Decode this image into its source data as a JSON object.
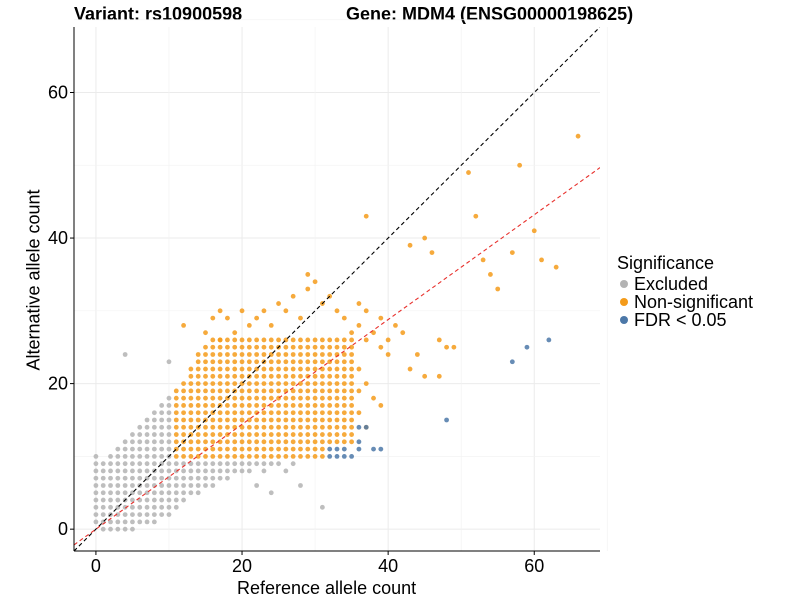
{
  "header": {
    "variant_label": "Variant: rs10900598",
    "gene_label": "Gene: MDM4 (ENSG00000198625)"
  },
  "chart_data": {
    "type": "scatter",
    "xlabel": "Reference allele count",
    "ylabel": "Alternative allele count",
    "xlim": [
      -3,
      69
    ],
    "ylim": [
      -3,
      69
    ],
    "xticks": [
      0,
      20,
      40,
      60
    ],
    "yticks": [
      0,
      20,
      40,
      60
    ],
    "grid": true,
    "legend_title": "Significance",
    "legend_position": "right",
    "series": [
      {
        "name": "Excluded",
        "color": "#b3b3b3",
        "points": [
          [
            0,
            1
          ],
          [
            0,
            2
          ],
          [
            0,
            3
          ],
          [
            0,
            4
          ],
          [
            0,
            5
          ],
          [
            0,
            6
          ],
          [
            0,
            7
          ],
          [
            0,
            8
          ],
          [
            0,
            9
          ],
          [
            0,
            10
          ],
          [
            1,
            0
          ],
          [
            1,
            1
          ],
          [
            1,
            2
          ],
          [
            1,
            3
          ],
          [
            1,
            4
          ],
          [
            1,
            5
          ],
          [
            1,
            6
          ],
          [
            1,
            7
          ],
          [
            1,
            8
          ],
          [
            1,
            9
          ],
          [
            2,
            0
          ],
          [
            2,
            1
          ],
          [
            2,
            2
          ],
          [
            2,
            3
          ],
          [
            2,
            4
          ],
          [
            2,
            5
          ],
          [
            2,
            6
          ],
          [
            2,
            7
          ],
          [
            2,
            8
          ],
          [
            2,
            9
          ],
          [
            2,
            10
          ],
          [
            3,
            0
          ],
          [
            3,
            1
          ],
          [
            3,
            2
          ],
          [
            3,
            3
          ],
          [
            3,
            4
          ],
          [
            3,
            5
          ],
          [
            3,
            6
          ],
          [
            3,
            7
          ],
          [
            3,
            8
          ],
          [
            3,
            9
          ],
          [
            3,
            10
          ],
          [
            3,
            11
          ],
          [
            4,
            0
          ],
          [
            4,
            1
          ],
          [
            4,
            2
          ],
          [
            4,
            3
          ],
          [
            4,
            4
          ],
          [
            4,
            5
          ],
          [
            4,
            6
          ],
          [
            4,
            7
          ],
          [
            4,
            8
          ],
          [
            4,
            9
          ],
          [
            4,
            10
          ],
          [
            4,
            11
          ],
          [
            4,
            12
          ],
          [
            4,
            24
          ],
          [
            5,
            0
          ],
          [
            5,
            1
          ],
          [
            5,
            2
          ],
          [
            5,
            3
          ],
          [
            5,
            4
          ],
          [
            5,
            5
          ],
          [
            5,
            6
          ],
          [
            5,
            7
          ],
          [
            5,
            8
          ],
          [
            5,
            9
          ],
          [
            5,
            10
          ],
          [
            5,
            11
          ],
          [
            5,
            12
          ],
          [
            5,
            13
          ],
          [
            6,
            1
          ],
          [
            6,
            2
          ],
          [
            6,
            3
          ],
          [
            6,
            4
          ],
          [
            6,
            5
          ],
          [
            6,
            6
          ],
          [
            6,
            7
          ],
          [
            6,
            8
          ],
          [
            6,
            9
          ],
          [
            6,
            10
          ],
          [
            6,
            11
          ],
          [
            6,
            12
          ],
          [
            6,
            13
          ],
          [
            6,
            14
          ],
          [
            7,
            1
          ],
          [
            7,
            2
          ],
          [
            7,
            3
          ],
          [
            7,
            4
          ],
          [
            7,
            5
          ],
          [
            7,
            6
          ],
          [
            7,
            7
          ],
          [
            7,
            8
          ],
          [
            7,
            9
          ],
          [
            7,
            10
          ],
          [
            7,
            11
          ],
          [
            7,
            12
          ],
          [
            7,
            13
          ],
          [
            7,
            14
          ],
          [
            7,
            15
          ],
          [
            8,
            1
          ],
          [
            8,
            2
          ],
          [
            8,
            3
          ],
          [
            8,
            4
          ],
          [
            8,
            5
          ],
          [
            8,
            6
          ],
          [
            8,
            7
          ],
          [
            8,
            8
          ],
          [
            8,
            9
          ],
          [
            8,
            10
          ],
          [
            8,
            11
          ],
          [
            8,
            12
          ],
          [
            8,
            13
          ],
          [
            8,
            14
          ],
          [
            8,
            15
          ],
          [
            8,
            16
          ],
          [
            9,
            2
          ],
          [
            9,
            3
          ],
          [
            9,
            4
          ],
          [
            9,
            5
          ],
          [
            9,
            6
          ],
          [
            9,
            7
          ],
          [
            9,
            8
          ],
          [
            9,
            9
          ],
          [
            9,
            10
          ],
          [
            9,
            11
          ],
          [
            9,
            12
          ],
          [
            9,
            13
          ],
          [
            9,
            14
          ],
          [
            9,
            15
          ],
          [
            9,
            16
          ],
          [
            9,
            17
          ],
          [
            10,
            2
          ],
          [
            10,
            3
          ],
          [
            10,
            4
          ],
          [
            10,
            5
          ],
          [
            10,
            6
          ],
          [
            10,
            7
          ],
          [
            10,
            8
          ],
          [
            10,
            9
          ],
          [
            10,
            10
          ],
          [
            10,
            11
          ],
          [
            10,
            12
          ],
          [
            10,
            13
          ],
          [
            10,
            14
          ],
          [
            10,
            15
          ],
          [
            10,
            16
          ],
          [
            10,
            17
          ],
          [
            10,
            18
          ],
          [
            10,
            23
          ],
          [
            11,
            3
          ],
          [
            11,
            4
          ],
          [
            11,
            5
          ],
          [
            11,
            6
          ],
          [
            11,
            7
          ],
          [
            11,
            8
          ],
          [
            11,
            9
          ],
          [
            12,
            4
          ],
          [
            12,
            5
          ],
          [
            12,
            6
          ],
          [
            12,
            7
          ],
          [
            12,
            8
          ],
          [
            12,
            9
          ],
          [
            13,
            5
          ],
          [
            13,
            6
          ],
          [
            13,
            7
          ],
          [
            13,
            8
          ],
          [
            13,
            9
          ],
          [
            14,
            5
          ],
          [
            14,
            6
          ],
          [
            14,
            7
          ],
          [
            14,
            8
          ],
          [
            14,
            9
          ],
          [
            15,
            6
          ],
          [
            15,
            7
          ],
          [
            15,
            8
          ],
          [
            15,
            9
          ],
          [
            16,
            6
          ],
          [
            16,
            7
          ],
          [
            16,
            8
          ],
          [
            16,
            9
          ],
          [
            17,
            7
          ],
          [
            17,
            8
          ],
          [
            17,
            9
          ],
          [
            18,
            7
          ],
          [
            18,
            8
          ],
          [
            18,
            9
          ],
          [
            19,
            8
          ],
          [
            19,
            9
          ],
          [
            20,
            8
          ],
          [
            20,
            9
          ],
          [
            21,
            8
          ],
          [
            21,
            9
          ],
          [
            22,
            9
          ],
          [
            23,
            9
          ],
          [
            24,
            9
          ],
          [
            25,
            9
          ],
          [
            22,
            6
          ],
          [
            24,
            5
          ],
          [
            27,
            9
          ],
          [
            28,
            6
          ],
          [
            23,
            8
          ],
          [
            26,
            8
          ],
          [
            31,
            3
          ]
        ]
      },
      {
        "name": "Non-significant",
        "color": "#f49b1a",
        "rect": {
          "x_from": 11,
          "x_to": 35,
          "y_from": 10,
          "y_to": 26
        },
        "points": [
          [
            12,
            28
          ],
          [
            14,
            24
          ],
          [
            15,
            27
          ],
          [
            16,
            29
          ],
          [
            17,
            26
          ],
          [
            17,
            30
          ],
          [
            18,
            29
          ],
          [
            19,
            27
          ],
          [
            20,
            30
          ],
          [
            21,
            28
          ],
          [
            22,
            29
          ],
          [
            23,
            30
          ],
          [
            24,
            28
          ],
          [
            25,
            31
          ],
          [
            26,
            30
          ],
          [
            27,
            32
          ],
          [
            28,
            29
          ],
          [
            29,
            33
          ],
          [
            29,
            35
          ],
          [
            30,
            34
          ],
          [
            31,
            31
          ],
          [
            32,
            32
          ],
          [
            33,
            30
          ],
          [
            34,
            29
          ],
          [
            35,
            27
          ],
          [
            36,
            31
          ],
          [
            36,
            28
          ],
          [
            37,
            26
          ],
          [
            37,
            43
          ],
          [
            37,
            30
          ],
          [
            38,
            27
          ],
          [
            39,
            29
          ],
          [
            39,
            25
          ],
          [
            40,
            26
          ],
          [
            40,
            24
          ],
          [
            41,
            28
          ],
          [
            42,
            27
          ],
          [
            43,
            39
          ],
          [
            43,
            22
          ],
          [
            44,
            24
          ],
          [
            45,
            40
          ],
          [
            45,
            21
          ],
          [
            46,
            38
          ],
          [
            47,
            21
          ],
          [
            47,
            26
          ],
          [
            48,
            25
          ],
          [
            49,
            25
          ],
          [
            51,
            49
          ],
          [
            52,
            43
          ],
          [
            53,
            37
          ],
          [
            54,
            35
          ],
          [
            55,
            33
          ],
          [
            57,
            38
          ],
          [
            58,
            50
          ],
          [
            60,
            41
          ],
          [
            61,
            37
          ],
          [
            63,
            36
          ],
          [
            66,
            54
          ],
          [
            36,
            22
          ],
          [
            37,
            20
          ],
          [
            38,
            18
          ],
          [
            39,
            17
          ],
          [
            36,
            16
          ],
          [
            37,
            14
          ],
          [
            36,
            19
          ]
        ]
      },
      {
        "name": "FDR < 0.05",
        "color": "#4c78a8",
        "points": [
          [
            32,
            11
          ],
          [
            32,
            10
          ],
          [
            33,
            11
          ],
          [
            33,
            10
          ],
          [
            34,
            11
          ],
          [
            34,
            10
          ],
          [
            35,
            10
          ],
          [
            36,
            12
          ],
          [
            36,
            14
          ],
          [
            37,
            14
          ],
          [
            36,
            11
          ],
          [
            38,
            11
          ],
          [
            39,
            11
          ],
          [
            48,
            15
          ],
          [
            57,
            23
          ],
          [
            59,
            25
          ],
          [
            62,
            26
          ]
        ]
      }
    ],
    "reference_lines": [
      {
        "name": "identity",
        "color": "#000000",
        "style": "dashed",
        "slope": 1,
        "intercept": 0
      },
      {
        "name": "fit",
        "color": "#e8302c",
        "style": "dashed",
        "slope": 0.72,
        "intercept": 0
      }
    ]
  }
}
